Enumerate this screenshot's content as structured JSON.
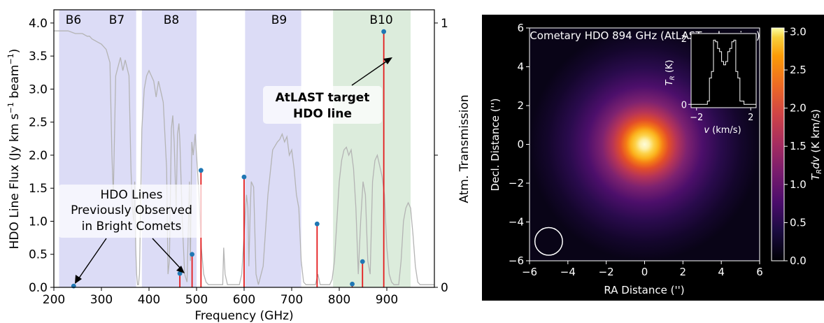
{
  "chart_data": [
    {
      "type": "line",
      "panel": "left",
      "xlabel": "Frequency (GHz)",
      "ylabel": "HDO Line Flux (Jy km s⁻¹ beam⁻¹)",
      "y2label": "Atm. Transmission",
      "xlim": [
        200,
        1000
      ],
      "ylim": [
        0,
        4.2
      ],
      "y2lim": [
        0,
        1.05
      ],
      "x_ticks": [
        200,
        300,
        400,
        500,
        600,
        700,
        800,
        900
      ],
      "y_ticks": [
        0.0,
        0.5,
        1.0,
        1.5,
        2.0,
        2.5,
        3.0,
        3.5,
        4.0
      ],
      "y2_ticks": [
        0,
        1
      ],
      "bands": [
        {
          "label": "B6",
          "range": [
            211,
            275
          ],
          "color": "#dcdcf6"
        },
        {
          "label": "B7",
          "range": [
            275,
            373
          ],
          "color": "#dcdcf6"
        },
        {
          "label": "B8",
          "range": [
            385,
            500
          ],
          "color": "#dcdcf6"
        },
        {
          "label": "B9",
          "range": [
            602,
            720
          ],
          "color": "#dcdcf6"
        },
        {
          "label": "B10",
          "range": [
            787,
            950
          ],
          "color": "#dcecdc"
        }
      ],
      "series": [
        {
          "kind": "stem",
          "x": [
            241.6,
            464.9,
            490.6,
            509.3,
            599.9,
            753.4,
            827.3,
            848.9,
            893.6
          ],
          "values": [
            0.02,
            0.21,
            0.5,
            1.77,
            1.67,
            0.96,
            0.05,
            0.39,
            3.87
          ]
        },
        {
          "kind": "transmission",
          "x": [
            200,
            215,
            230,
            245,
            260,
            270,
            275,
            280,
            290,
            300,
            310,
            318,
            322,
            325,
            330,
            340,
            345,
            350,
            358,
            362,
            365,
            368,
            370,
            372,
            374,
            376,
            378,
            380,
            385,
            390,
            395,
            400,
            405,
            410,
            415,
            420,
            425,
            430,
            437,
            440,
            443,
            447,
            450,
            453,
            457,
            460,
            463,
            465,
            470,
            475,
            480,
            485,
            487,
            490,
            493,
            497,
            500,
            505,
            510,
            515,
            520,
            525,
            530,
            540,
            550,
            555,
            557,
            560,
            565,
            570,
            575,
            580,
            585,
            590,
            595,
            600,
            603,
            605,
            608,
            610,
            613,
            615,
            620,
            625,
            630,
            640,
            650,
            660,
            670,
            675,
            680,
            685,
            690,
            695,
            700,
            705,
            710,
            715,
            720,
            725,
            730,
            735,
            740,
            750,
            755,
            760,
            765,
            770,
            775,
            780,
            785,
            790,
            795,
            800,
            805,
            810,
            815,
            820,
            825,
            830,
            835,
            840,
            845,
            850,
            855,
            860,
            865,
            870,
            875,
            880,
            885,
            890,
            895,
            900,
            905,
            910,
            915,
            920,
            925,
            930,
            935,
            940,
            945,
            950,
            955,
            960,
            965,
            970,
            975,
            980,
            985,
            990,
            1000
          ],
          "values": [
            0.97,
            0.97,
            0.97,
            0.96,
            0.96,
            0.95,
            0.95,
            0.94,
            0.93,
            0.92,
            0.9,
            0.85,
            0.5,
            0.35,
            0.8,
            0.87,
            0.82,
            0.86,
            0.8,
            0.45,
            0.3,
            0.25,
            0.4,
            0.15,
            0.05,
            0.01,
            0.01,
            0.05,
            0.6,
            0.75,
            0.8,
            0.82,
            0.8,
            0.78,
            0.72,
            0.78,
            0.74,
            0.7,
            0.45,
            0.05,
            0.1,
            0.6,
            0.65,
            0.55,
            0.3,
            0.58,
            0.62,
            0.55,
            0.25,
            0.05,
            0.02,
            0.4,
            0.1,
            0.55,
            0.5,
            0.58,
            0.5,
            0.35,
            0.15,
            0.05,
            0.02,
            0.01,
            0.01,
            0.01,
            0.01,
            0.01,
            0.15,
            0.05,
            0.01,
            0.01,
            0.01,
            0.01,
            0.01,
            0.01,
            0.05,
            0.2,
            0.3,
            0.35,
            0.3,
            0.08,
            0.3,
            0.4,
            0.38,
            0.05,
            0.01,
            0.08,
            0.35,
            0.52,
            0.55,
            0.56,
            0.58,
            0.55,
            0.57,
            0.5,
            0.52,
            0.45,
            0.35,
            0.3,
            0.1,
            0.02,
            0.01,
            0.01,
            0.01,
            0.01,
            0.05,
            0.01,
            0.01,
            0.01,
            0.01,
            0.01,
            0.03,
            0.1,
            0.25,
            0.4,
            0.48,
            0.52,
            0.53,
            0.5,
            0.52,
            0.45,
            0.3,
            0.05,
            0.25,
            0.4,
            0.35,
            0.1,
            0.05,
            0.4,
            0.48,
            0.5,
            0.46,
            0.42,
            0.35,
            0.15,
            0.05,
            0.02,
            0.01,
            0.01,
            0.01,
            0.1,
            0.25,
            0.3,
            0.32,
            0.3,
            0.2,
            0.08,
            0.02,
            0.01,
            0.01,
            0.01,
            0.01,
            0.01,
            0.01
          ]
        }
      ],
      "annotations": [
        {
          "text": [
            "AtLAST target",
            "HDO line"
          ],
          "points_to": [
            893.6,
            3.87
          ]
        },
        {
          "text": [
            "HDO Lines",
            "Previously Observed",
            "in Bright Comets"
          ],
          "points_to": [
            [
              241.6,
              0.02
            ],
            [
              464.9,
              0.21
            ]
          ]
        }
      ]
    },
    {
      "type": "heatmap",
      "panel": "right",
      "title": "Cometary HDO 894 GHz (AtLAST cube sim.)",
      "xlabel": "RA Distance ('')",
      "ylabel": "Decl. Distance ('')",
      "colorbar_label": "T_R dv (K km/s)",
      "xlim": [
        -6,
        6
      ],
      "ylim": [
        -6,
        6
      ],
      "x_ticks": [
        -6,
        -4,
        -2,
        0,
        2,
        4,
        6
      ],
      "y_ticks": [
        -6,
        -4,
        -2,
        0,
        2,
        4,
        6
      ],
      "colorbar_ticks": [
        0.0,
        0.5,
        1.0,
        1.5,
        2.0,
        2.5,
        3.0
      ],
      "clim": [
        0,
        3.05
      ],
      "colormap": "inferno-like",
      "peak": 3.0,
      "beam_circle_center": [
        -5,
        -5
      ],
      "beam_circle_radius": 0.72,
      "inset": {
        "type": "line",
        "xlabel": "v (km/s)",
        "ylabel": "T_R (K)",
        "xlim": [
          -2.4,
          2.4
        ],
        "ylim": [
          -0.1,
          2.15
        ],
        "x_ticks": [
          -2,
          2
        ],
        "y_ticks": [
          0,
          2
        ],
        "x": [
          -2.4,
          -1.5,
          -1.2,
          -1.05,
          -0.9,
          -0.75,
          -0.6,
          -0.45,
          -0.3,
          -0.15,
          0,
          0.15,
          0.3,
          0.45,
          0.6,
          0.75,
          0.9,
          1.05,
          1.2,
          1.5,
          2.4
        ],
        "values": [
          0,
          0,
          0.1,
          0.8,
          1.0,
          1.95,
          1.9,
          1.7,
          1.6,
          1.3,
          1.2,
          1.3,
          1.6,
          1.7,
          1.9,
          1.95,
          1.0,
          0.8,
          0.1,
          0,
          0
        ]
      }
    }
  ],
  "labels": {
    "b6": "B6",
    "b7": "B7",
    "b8": "B8",
    "b9": "B9",
    "b10": "B10",
    "target_line1": "AtLAST target",
    "target_line2": "HDO line",
    "prev_line1": "HDO Lines",
    "prev_line2": "Previously Observed",
    "prev_line3": "in Bright Comets"
  }
}
